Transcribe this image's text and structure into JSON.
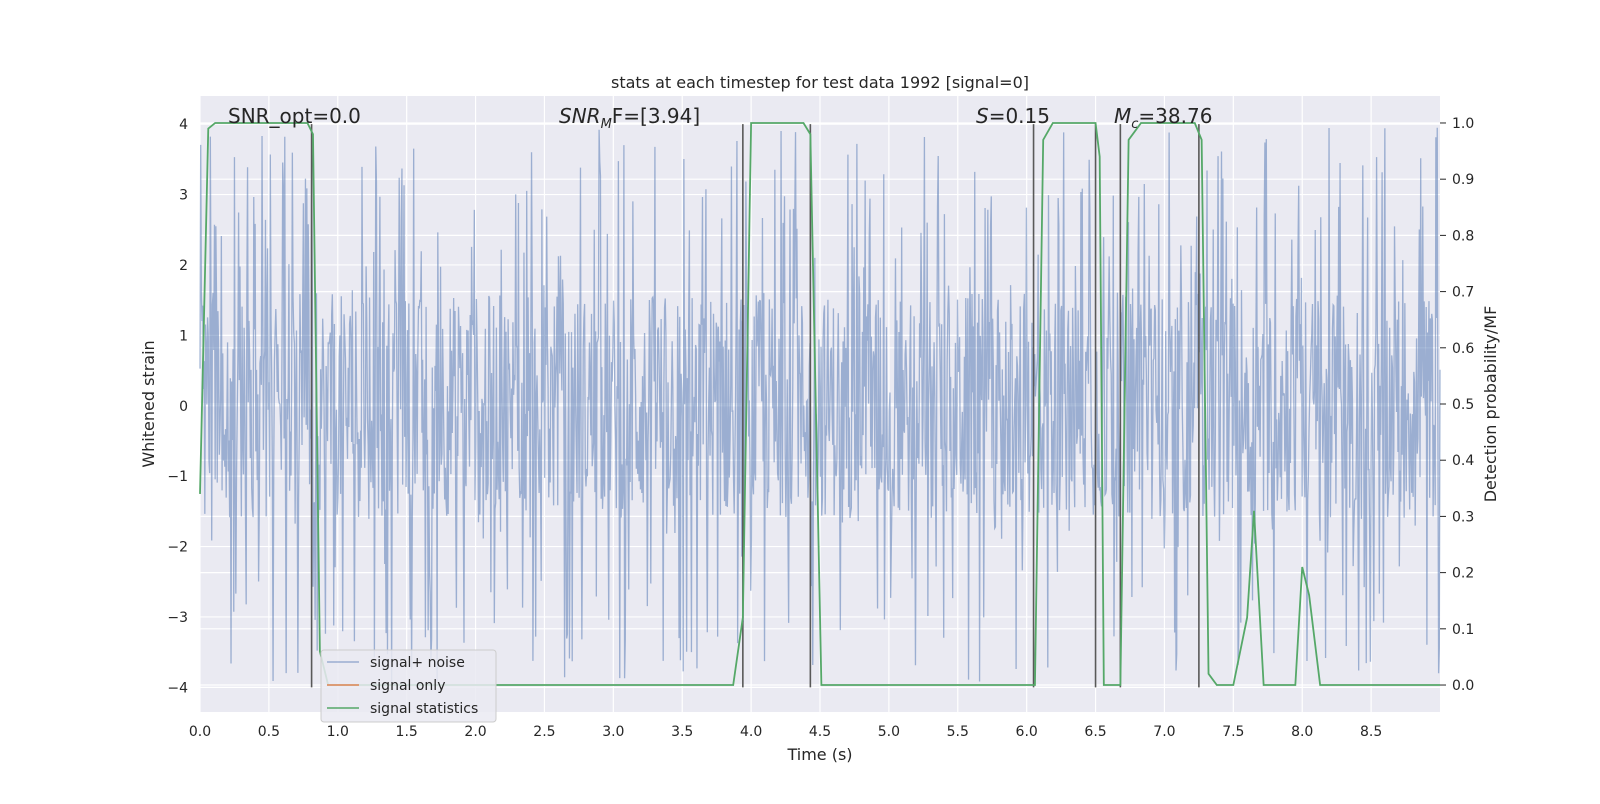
{
  "chart_data": {
    "type": "line",
    "title": "stats at each timestep for test data 1992 [signal=0]",
    "xlabel": "Time (s)",
    "ylabel_left": "Whitened strain",
    "ylabel_right": "Detection probability/MF",
    "xlim": [
      0.0,
      9.0
    ],
    "ylim_left": [
      -4.35,
      4.4
    ],
    "ylim_right": [
      -0.048,
      1.048
    ],
    "x_ticks": [
      0.0,
      0.5,
      1.0,
      1.5,
      2.0,
      2.5,
      3.0,
      3.5,
      4.0,
      4.5,
      5.0,
      5.5,
      6.0,
      6.5,
      7.0,
      7.5,
      8.0,
      8.5
    ],
    "x_tick_labels": [
      "0.0",
      "0.5",
      "1.0",
      "1.5",
      "2.0",
      "2.5",
      "3.0",
      "3.5",
      "4.0",
      "4.5",
      "5.0",
      "5.5",
      "6.0",
      "6.5",
      "7.0",
      "7.5",
      "8.0",
      "8.5"
    ],
    "y_left_ticks": [
      -4,
      -3,
      -2,
      -1,
      0,
      1,
      2,
      3,
      4
    ],
    "y_left_tick_labels": [
      "−4",
      "−3",
      "−2",
      "−1",
      "0",
      "1",
      "2",
      "3",
      "4"
    ],
    "y_right_ticks": [
      0.0,
      0.1,
      0.2,
      0.3,
      0.4,
      0.5,
      0.6,
      0.7,
      0.8,
      0.9,
      1.0
    ],
    "y_right_tick_labels": [
      "0.0",
      "0.1",
      "0.2",
      "0.3",
      "0.4",
      "0.5",
      "0.6",
      "0.7",
      "0.8",
      "0.9",
      "1.0"
    ],
    "grid": true,
    "legend_placement": "lower-left",
    "annotations": [
      {
        "text": "SNR_opt=0.0",
        "x": 0.2
      },
      {
        "text_main": "SNR",
        "text_sub": "M",
        "text_rest": "F=[3.94]",
        "italic": true,
        "x": 2.6
      },
      {
        "text_main": "S",
        "text_rest": "=0.15",
        "italic": true,
        "x": 5.6
      },
      {
        "text_main": "M",
        "text_sub": "c",
        "text_rest": "=38.76",
        "italic": true,
        "x": 6.6
      }
    ],
    "series": [
      {
        "name": "signal+ noise",
        "color": "#4c72b0",
        "axis": "left",
        "kind": "noise",
        "duration": 9.0,
        "samples": 1800,
        "typical_band": [
          -1.55,
          1.6
        ],
        "max_peak": 3.95,
        "min_peak": -4.0
      },
      {
        "name": "signal only",
        "color": "#dd8452",
        "axis": "left",
        "x": [],
        "y": []
      },
      {
        "name": "signal statistics",
        "color": "#55a868",
        "axis": "right",
        "x": [
          0.0,
          0.06,
          0.11,
          0.78,
          0.82,
          0.87,
          0.93,
          1.0,
          1.6,
          2.2,
          2.8,
          3.4,
          3.87,
          3.94,
          4.0,
          4.38,
          4.43,
          4.51,
          4.6,
          5.0,
          5.5,
          6.0,
          6.06,
          6.12,
          6.19,
          6.5,
          6.53,
          6.56,
          6.62,
          6.68,
          6.74,
          6.83,
          7.22,
          7.27,
          7.32,
          7.38,
          7.5,
          7.6,
          7.65,
          7.72,
          7.8,
          7.95,
          8.0,
          8.05,
          8.13,
          8.5,
          9.0
        ],
        "y": [
          0.34,
          0.99,
          1.0,
          1.0,
          0.98,
          0.06,
          0.0,
          0.0,
          0.0,
          0.0,
          0.0,
          0.0,
          0.0,
          0.12,
          1.0,
          1.0,
          0.98,
          0.0,
          0.0,
          0.0,
          0.0,
          0.0,
          0.0,
          0.97,
          1.0,
          1.0,
          0.94,
          0.0,
          0.0,
          0.0,
          0.97,
          1.0,
          1.0,
          0.97,
          0.02,
          0.0,
          0.0,
          0.12,
          0.31,
          0.0,
          0.0,
          0.0,
          0.21,
          0.16,
          0.0,
          0.0,
          0.0
        ]
      }
    ],
    "vertical_markers": {
      "color": "#595959",
      "x": [
        0.81,
        3.94,
        4.43,
        6.05,
        6.5,
        6.68,
        7.25
      ],
      "y_range_left": [
        -4.0,
        4.0
      ]
    }
  }
}
